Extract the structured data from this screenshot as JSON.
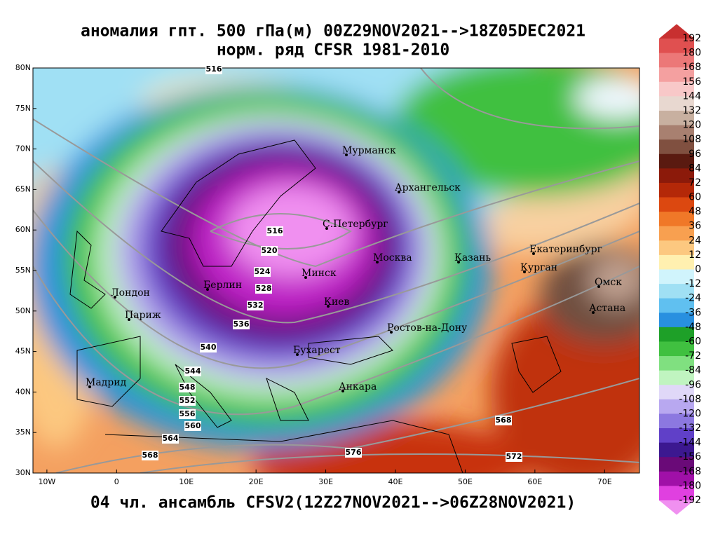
{
  "title": "аномалия гпт. 500 гПа(м) 00Z29NOV2021-->18Z05DEC2021",
  "subtitle": "норм. ряд CFSR 1981-2010",
  "footer": "04 чл. ансамбль CFSV2(12Z27NOV2021-->06Z28NOV2021)",
  "map": {
    "xlim": [
      -12,
      75
    ],
    "ylim": [
      30,
      80
    ],
    "xticks": [
      {
        "value": -10,
        "label": "10W"
      },
      0,
      {
        "value": 10,
        "label": "10E"
      },
      {
        "value": 20,
        "label": "20E"
      },
      {
        "value": 30,
        "label": "30E"
      },
      {
        "value": 40,
        "label": "40E"
      },
      {
        "value": 50,
        "label": "50E"
      },
      {
        "value": 60,
        "label": "60E"
      },
      {
        "value": 70,
        "label": "70E"
      }
    ],
    "yticks": [
      {
        "value": 80,
        "label": "80N"
      },
      {
        "value": 75,
        "label": "75N"
      },
      {
        "value": 70,
        "label": "70N"
      },
      {
        "value": 65,
        "label": "65N"
      },
      {
        "value": 60,
        "label": "60N"
      },
      {
        "value": 55,
        "label": "55N"
      },
      {
        "value": 50,
        "label": "50N"
      },
      {
        "value": 45,
        "label": "45N"
      },
      {
        "value": 40,
        "label": "40N"
      },
      {
        "value": 35,
        "label": "35N"
      },
      {
        "value": 30,
        "label": "30N"
      }
    ],
    "cities": [
      "Мурманск",
      "Архангельск",
      "С.Петербург",
      "Москва",
      "Казань",
      "Екатеринбург",
      "Курган",
      "Минск",
      "Берлин",
      "Лондон",
      "Париж",
      "Киев",
      "Омск",
      "Астана",
      "Ростов-на-Дону",
      "Бухарест",
      "Мадрид",
      "Анкара"
    ],
    "contour_labels": [
      516,
      516,
      520,
      524,
      528,
      532,
      536,
      540,
      544,
      548,
      552,
      556,
      560,
      564,
      568,
      568,
      572,
      576
    ]
  },
  "colorbar": {
    "ticks": [
      192,
      180,
      168,
      156,
      144,
      132,
      120,
      108,
      96,
      84,
      72,
      60,
      48,
      36,
      24,
      12,
      0,
      -12,
      -24,
      -36,
      -48,
      -60,
      -72,
      -84,
      -96,
      -108,
      -120,
      -132,
      -144,
      -156,
      -168,
      -180,
      -192
    ],
    "colors": [
      "#c83030",
      "#e05050",
      "#ec7878",
      "#f4a0a0",
      "#f8c8c8",
      "#e8d8d0",
      "#c8b0a0",
      "#a88070",
      "#805040",
      "#5a1a10",
      "#8c1a0a",
      "#b42808",
      "#dc4810",
      "#f07828",
      "#f8a050",
      "#fcc880",
      "#fff0b0",
      "#d0f4fc",
      "#a0e0f4",
      "#60c0f0",
      "#2890e0",
      "#1ea028",
      "#40c040",
      "#80e080",
      "#c0f4c0",
      "#e0d8f8",
      "#b8a8f0",
      "#8c78e0",
      "#6040c8",
      "#3c1890",
      "#6a0a78",
      "#a010a8",
      "#e040e0",
      "#f090f0"
    ]
  }
}
